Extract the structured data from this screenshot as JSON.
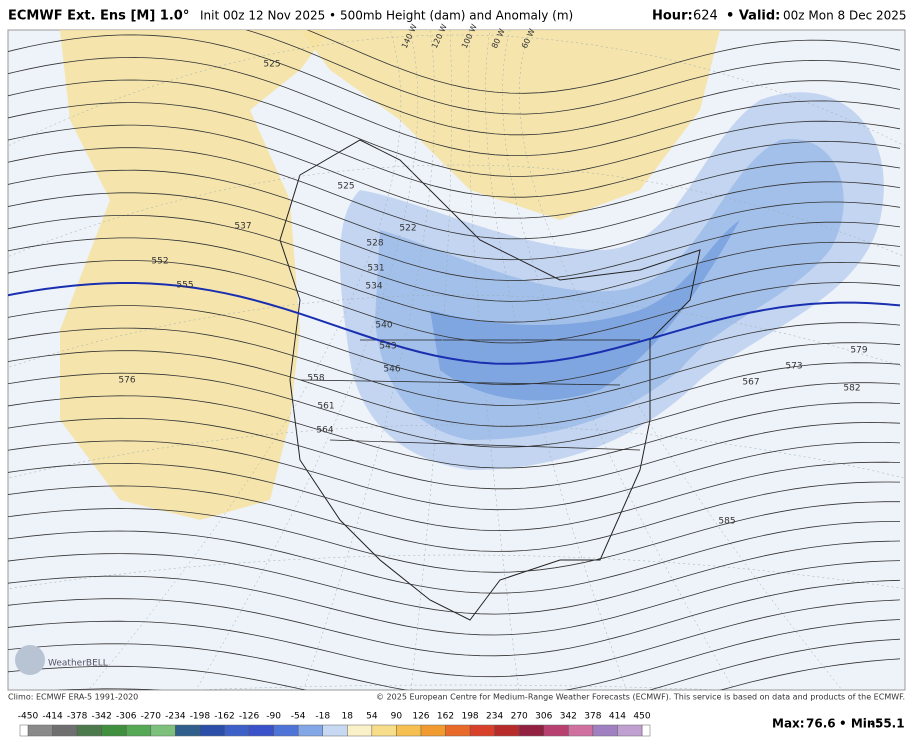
{
  "header": {
    "title": "ECMWF Ext. Ens [M] 1.0°",
    "subtitle": "Init 00z 12 Nov 2025 • 500mb Height (dam) and Anomaly (m)",
    "hour_label": "Hour:",
    "hour": "624",
    "valid_label": "• Valid:",
    "valid": "00z Mon 8 Dec 2025"
  },
  "map": {
    "contour_labels": [
      525,
      537,
      552,
      555,
      576,
      522,
      528,
      531,
      534,
      540,
      543,
      546,
      558,
      561,
      564,
      567,
      573,
      579,
      582,
      585,
      525
    ],
    "longitude_labels": [
      "140 W",
      "120 W",
      "100 W",
      "80 W",
      "60 W"
    ],
    "logo": "WeatherBELL"
  },
  "footer": {
    "climo": "Climo: ECMWF ERA-5 1991-2020",
    "copyright": "© 2025 European Centre for Medium-Range Weather Forecasts (ECMWF). This service is based on data and products of the ECMWF."
  },
  "legend": {
    "ticks": [
      -450,
      -414,
      -378,
      -342,
      -306,
      -270,
      -234,
      -198,
      -162,
      -126,
      -90,
      -54,
      -18,
      18,
      54,
      90,
      126,
      162,
      198,
      234,
      270,
      306,
      342,
      378,
      414,
      450
    ],
    "colors": [
      "#8a8a8a",
      "#6f6f6f",
      "#4d7a4d",
      "#3f8f3f",
      "#55a955",
      "#7cc07c",
      "#2f5e8c",
      "#2b4ea8",
      "#3c60c8",
      "#3a52c9",
      "#4f74d8",
      "#82a6e6",
      "#c6d8f2",
      "#fbf1c8",
      "#f7dc8a",
      "#f5c04f",
      "#f19a2f",
      "#e8692a",
      "#d8402a",
      "#b82b2b",
      "#922040",
      "#b84070",
      "#d070a0",
      "#a080c0",
      "#c0a0d0"
    ],
    "max_label": "Max:",
    "max": 76.6,
    "min_label": "• Min:",
    "min": -55.1
  }
}
